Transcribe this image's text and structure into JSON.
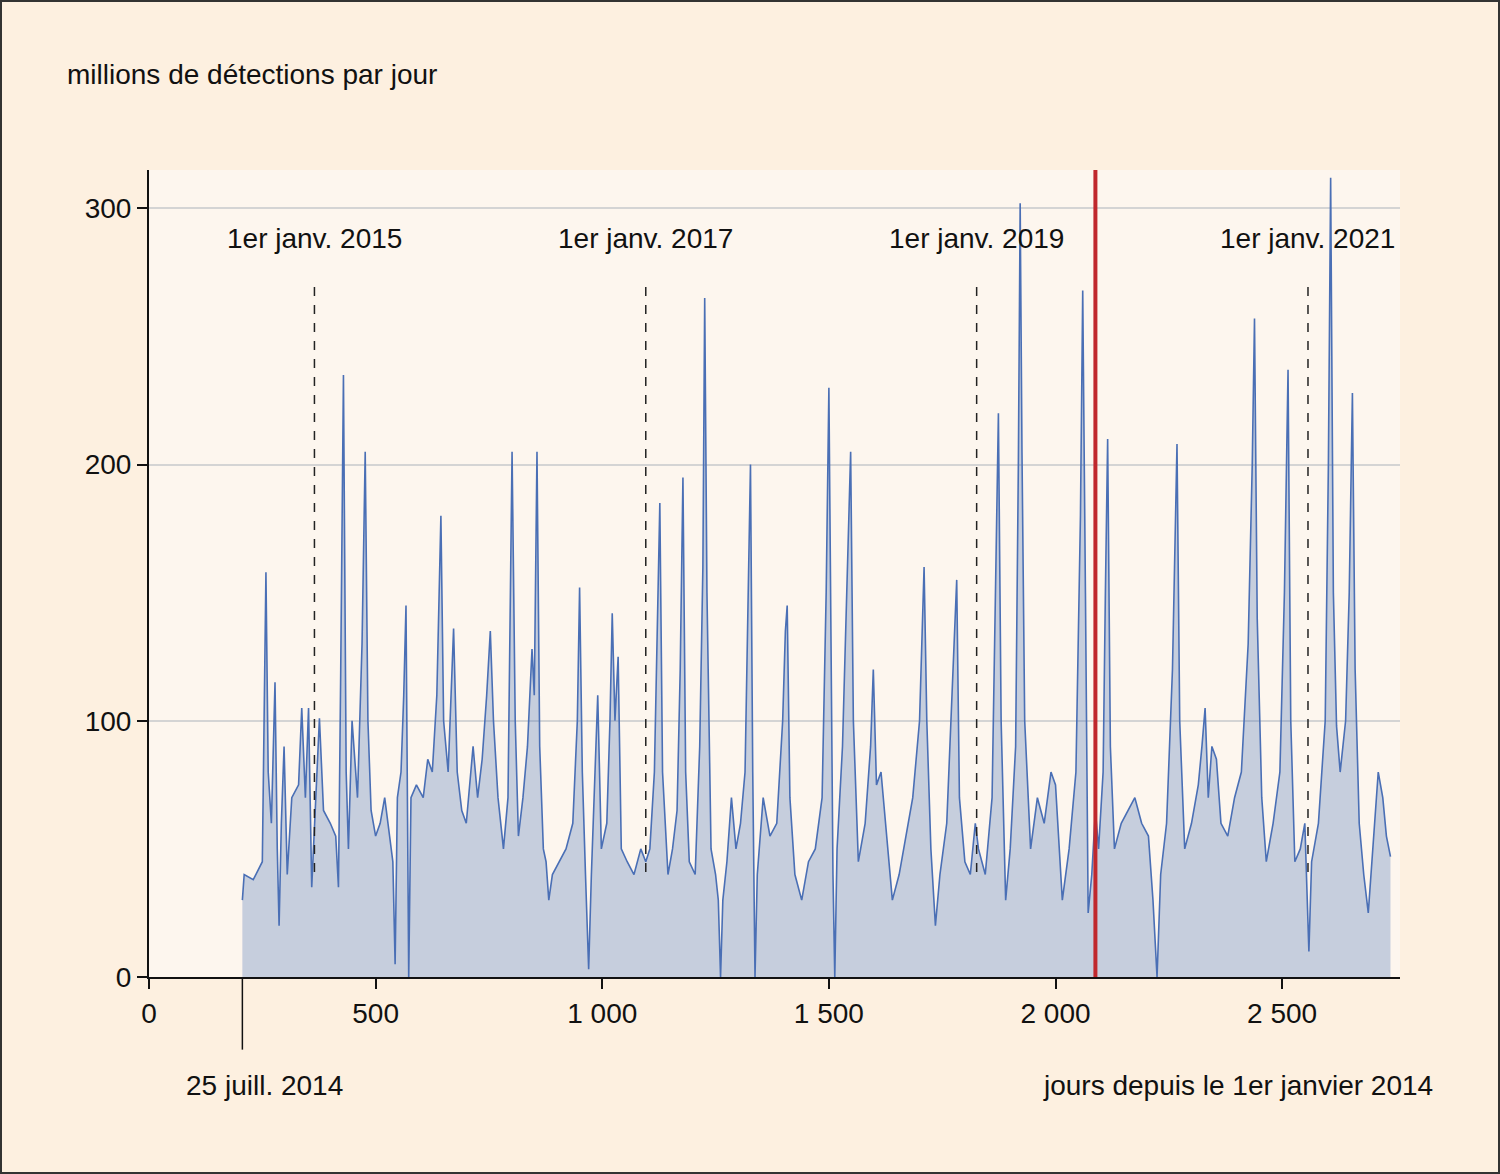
{
  "chart_data": {
    "type": "area",
    "y_label": "millions de détections par jour",
    "x_label": "jours depuis le 1er janvier 2014",
    "color": "#4a6fb5",
    "grid": true,
    "xlim": [
      0,
      2760
    ],
    "ylim": [
      0,
      315
    ],
    "xticks": [
      0,
      500,
      {
        "value": 1000,
        "label": "1 000"
      },
      {
        "value": 1500,
        "label": "1 500"
      },
      {
        "value": 2000,
        "label": "2 000"
      },
      {
        "value": 2500,
        "label": "2 500"
      }
    ],
    "yticks": [
      0,
      100,
      200,
      300
    ],
    "annotations": [
      {
        "x": 365,
        "text": "1er janv. 2015"
      },
      {
        "x": 1096,
        "text": "1er janv. 2017"
      },
      {
        "x": 1826,
        "text": "1er janv. 2019"
      },
      {
        "x": 2557,
        "text": "1er janv. 2021"
      }
    ],
    "start": {
      "x": 206,
      "text": "25 juill. 2014"
    },
    "highlight": {
      "x": 2088,
      "color": "#c0282d"
    },
    "x": [
      206,
      210,
      230,
      250,
      258,
      263,
      270,
      278,
      283,
      287,
      292,
      298,
      305,
      315,
      330,
      337,
      345,
      352,
      359,
      366,
      376,
      385,
      400,
      412,
      418,
      423,
      429,
      435,
      440,
      448,
      460,
      470,
      477,
      483,
      490,
      500,
      510,
      520,
      530,
      538,
      543,
      548,
      556,
      562,
      567,
      570,
      573,
      578,
      590,
      605,
      615,
      625,
      635,
      644,
      650,
      660,
      672,
      680,
      690,
      700,
      715,
      725,
      735,
      745,
      753,
      760,
      770,
      782,
      792,
      801,
      808,
      815,
      825,
      835,
      845,
      850,
      856,
      862,
      870,
      876,
      882,
      890,
      905,
      920,
      935,
      945,
      950,
      956,
      963,
      970,
      976,
      985,
      990,
      998,
      1010,
      1017,
      1022,
      1028,
      1035,
      1042,
      1055,
      1070,
      1085,
      1096,
      1105,
      1115,
      1122,
      1127,
      1133,
      1145,
      1155,
      1165,
      1172,
      1178,
      1184,
      1192,
      1205,
      1215,
      1222,
      1226,
      1231,
      1240,
      1250,
      1256,
      1261,
      1266,
      1275,
      1285,
      1295,
      1305,
      1315,
      1322,
      1327,
      1332,
      1337,
      1342,
      1355,
      1370,
      1385,
      1398,
      1404,
      1408,
      1414,
      1425,
      1440,
      1455,
      1470,
      1485,
      1494,
      1500,
      1505,
      1509,
      1513,
      1518,
      1530,
      1540,
      1548,
      1554,
      1565,
      1580,
      1592,
      1598,
      1605,
      1615,
      1625,
      1640,
      1655,
      1670,
      1685,
      1700,
      1710,
      1716,
      1725,
      1735,
      1745,
      1760,
      1772,
      1782,
      1788,
      1800,
      1812,
      1823,
      1830,
      1845,
      1860,
      1868,
      1874,
      1880,
      1890,
      1900,
      1912,
      1918,
      1922,
      1926,
      1932,
      1945,
      1960,
      1975,
      1990,
      2000,
      2015,
      2030,
      2045,
      2055,
      2060,
      2066,
      2072,
      2080,
      2088,
      2095,
      2105,
      2110,
      2115,
      2121,
      2130,
      2145,
      2160,
      2175,
      2190,
      2205,
      2215,
      2224,
      2232,
      2245,
      2258,
      2268,
      2274,
      2285,
      2300,
      2315,
      2323,
      2330,
      2337,
      2345,
      2355,
      2365,
      2380,
      2395,
      2410,
      2425,
      2434,
      2439,
      2445,
      2455,
      2465,
      2480,
      2495,
      2505,
      2513,
      2519,
      2528,
      2540,
      2550,
      2559,
      2565,
      2580,
      2595,
      2602,
      2607,
      2613,
      2620,
      2628,
      2640,
      2648,
      2655,
      2661,
      2670,
      2680,
      2690,
      2700,
      2712,
      2722,
      2730,
      2739
    ],
    "values": [
      30,
      40,
      38,
      45,
      158,
      80,
      60,
      115,
      50,
      20,
      60,
      90,
      40,
      70,
      75,
      105,
      70,
      105,
      35,
      65,
      101,
      65,
      60,
      55,
      35,
      120,
      235,
      80,
      50,
      100,
      70,
      130,
      205,
      100,
      65,
      55,
      60,
      70,
      55,
      45,
      5,
      70,
      80,
      110,
      145,
      60,
      0,
      70,
      75,
      70,
      85,
      80,
      110,
      180,
      100,
      80,
      136,
      80,
      65,
      60,
      90,
      70,
      85,
      110,
      135,
      100,
      70,
      50,
      70,
      205,
      100,
      55,
      70,
      90,
      128,
      110,
      205,
      90,
      50,
      45,
      30,
      40,
      45,
      50,
      60,
      100,
      152,
      80,
      40,
      3,
      40,
      90,
      110,
      50,
      60,
      100,
      142,
      100,
      125,
      50,
      45,
      40,
      50,
      45,
      50,
      80,
      150,
      185,
      80,
      40,
      50,
      65,
      120,
      195,
      80,
      45,
      40,
      90,
      160,
      265,
      150,
      50,
      40,
      30,
      0,
      30,
      45,
      70,
      50,
      60,
      80,
      150,
      200,
      80,
      0,
      40,
      70,
      55,
      60,
      100,
      135,
      145,
      70,
      40,
      30,
      45,
      50,
      70,
      150,
      230,
      120,
      40,
      0,
      50,
      90,
      150,
      205,
      100,
      45,
      60,
      90,
      120,
      75,
      80,
      60,
      30,
      40,
      55,
      70,
      100,
      160,
      100,
      50,
      20,
      40,
      60,
      110,
      155,
      70,
      45,
      40,
      60,
      50,
      40,
      70,
      150,
      220,
      100,
      30,
      50,
      90,
      200,
      302,
      205,
      100,
      50,
      70,
      60,
      80,
      75,
      30,
      50,
      80,
      180,
      268,
      150,
      25,
      40,
      65,
      50,
      80,
      150,
      210,
      90,
      50,
      60,
      65,
      70,
      60,
      55,
      30,
      0,
      40,
      60,
      120,
      208,
      100,
      50,
      60,
      75,
      90,
      105,
      70,
      90,
      85,
      60,
      55,
      70,
      80,
      130,
      200,
      257,
      140,
      70,
      45,
      60,
      80,
      150,
      237,
      100,
      45,
      50,
      60,
      10,
      45,
      60,
      100,
      200,
      312,
      150,
      98,
      80,
      100,
      150,
      228,
      120,
      60,
      40,
      25,
      50,
      80,
      70,
      55,
      47
    ]
  }
}
